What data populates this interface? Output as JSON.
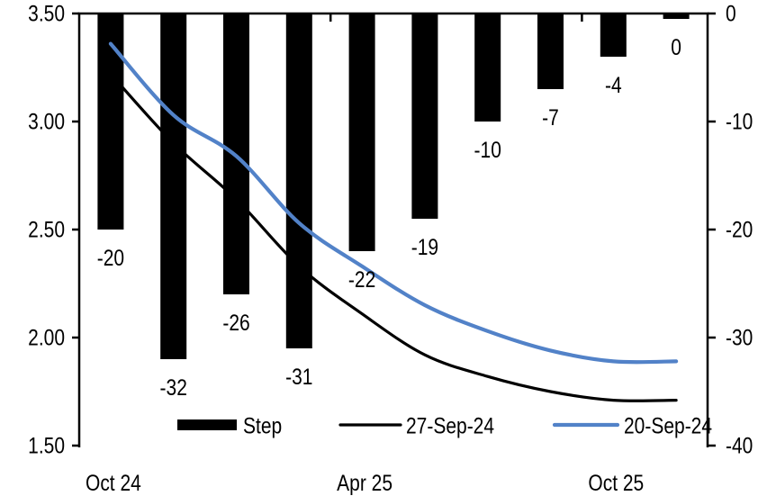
{
  "chart_data": {
    "type": "combo",
    "n_categories": 10,
    "x_axis": {
      "labels": [
        {
          "category_index": 0,
          "text": "Oct 24"
        },
        {
          "category_index": 4,
          "text": "Apr 25"
        },
        {
          "category_index": 8,
          "text": "Oct 25"
        }
      ],
      "boundary_ticks_after_category": [
        4,
        8
      ]
    },
    "left_axis": {
      "min": 1.5,
      "max": 3.5,
      "ticks": [
        "3.50",
        "3.00",
        "2.50",
        "2.00",
        "1.50"
      ]
    },
    "right_axis": {
      "min": -40,
      "max": 0,
      "ticks": [
        "0",
        "-10",
        "-20",
        "-30",
        "-40"
      ]
    },
    "series": [
      {
        "name": "Step",
        "type": "bar",
        "axis": "right",
        "color": "#000000",
        "values": [
          -20,
          -32,
          -26,
          -31,
          -22,
          -19,
          -10,
          -7,
          -4,
          0
        ],
        "data_labels": [
          "-20",
          "-32",
          "-26",
          "-31",
          "-22",
          "-19",
          "-10",
          "-7",
          "-4",
          "0"
        ]
      },
      {
        "name": "27-Sep-24",
        "type": "line",
        "axis": "left",
        "color": "#000000",
        "smoothed": true,
        "values": [
          3.22,
          2.9,
          2.64,
          2.33,
          2.11,
          1.92,
          1.82,
          1.75,
          1.71,
          1.71
        ]
      },
      {
        "name": "20-Sep-24",
        "type": "line",
        "axis": "left",
        "color": "#5282C8",
        "smoothed": true,
        "values": [
          3.36,
          3.03,
          2.84,
          2.53,
          2.33,
          2.15,
          2.03,
          1.94,
          1.89,
          1.89
        ]
      }
    ],
    "legend": {
      "position": "bottom",
      "entries": [
        "Step",
        "27-Sep-24",
        "20-Sep-24"
      ]
    }
  }
}
